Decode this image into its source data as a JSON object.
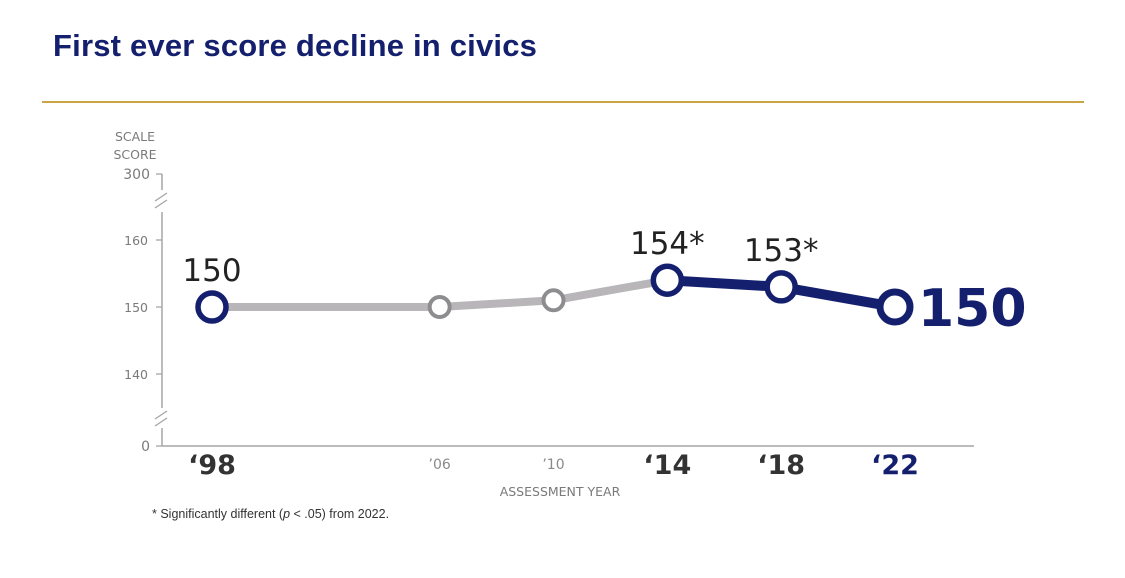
{
  "header": {
    "title": "First ever score decline in civics"
  },
  "footnote": {
    "prefix": "* Significantly different (",
    "p_symbol": "p",
    "suffix": " < .05) from 2022."
  },
  "colors": {
    "navy": "#14206e",
    "gray_line": "#b8b6b9",
    "gray_marker": "#8d8c8e",
    "gold_rule": "#c9a545",
    "axis": "#a6a6a6"
  },
  "chart_data": {
    "type": "line",
    "title": "",
    "ylabel_lines": [
      "SCALE",
      "SCORE"
    ],
    "xlabel": "ASSESSMENT YEAR",
    "y_ticks": [
      {
        "value": 300,
        "label": "300",
        "break_scale": true
      },
      {
        "value": 160,
        "label": "160"
      },
      {
        "value": 150,
        "label": "150"
      },
      {
        "value": 140,
        "label": "140"
      },
      {
        "value": 0,
        "label": "0",
        "break_scale": true
      }
    ],
    "ylim_visible": [
      140,
      160
    ],
    "points": [
      {
        "year": 1998,
        "tick_label": "‘98",
        "value": 150,
        "data_label": "150",
        "emphasis": "major",
        "segment_from_prev": "gray",
        "label_pos": "above"
      },
      {
        "year": 2006,
        "tick_label": "’06",
        "value": 150,
        "data_label": "",
        "emphasis": "minor",
        "segment_from_prev": "gray",
        "label_pos": "none"
      },
      {
        "year": 2010,
        "tick_label": "’10",
        "value": 151,
        "data_label": "",
        "emphasis": "minor",
        "segment_from_prev": "gray",
        "label_pos": "none"
      },
      {
        "year": 2014,
        "tick_label": "‘14",
        "value": 154,
        "data_label": "154*",
        "emphasis": "major",
        "segment_from_prev": "gray",
        "label_pos": "above"
      },
      {
        "year": 2018,
        "tick_label": "‘18",
        "value": 153,
        "data_label": "153*",
        "emphasis": "major",
        "segment_from_prev": "navy",
        "label_pos": "above"
      },
      {
        "year": 2022,
        "tick_label": "‘22",
        "value": 150,
        "data_label": "150",
        "emphasis": "current",
        "segment_from_prev": "navy",
        "label_pos": "right"
      }
    ]
  }
}
